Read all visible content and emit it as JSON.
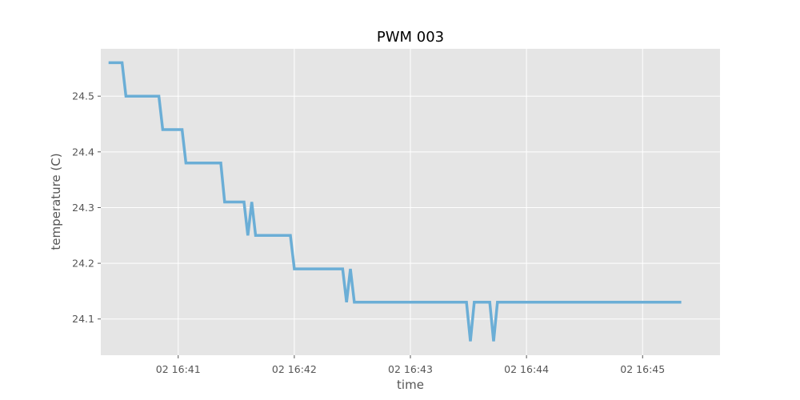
{
  "chart_data": {
    "type": "line",
    "title": "PWM 003",
    "xlabel": "time",
    "ylabel": "temperature (C)",
    "x_tick_labels": [
      "02 16:41",
      "02 16:42",
      "02 16:43",
      "02 16:44",
      "02 16:45"
    ],
    "y_tick_labels": [
      "24.1",
      "24.2",
      "24.3",
      "24.4",
      "24.5"
    ],
    "y_ticks": [
      24.1,
      24.2,
      24.3,
      24.4,
      24.5
    ],
    "xlim": [
      "16:40:20",
      "16:45:40"
    ],
    "ylim": [
      24.035,
      24.585
    ],
    "grid": true,
    "colors": {
      "line": "#6baed6",
      "plot_background": "#e5e5e5",
      "grid": "#ffffff"
    },
    "series": [
      {
        "x": [
          "16:40:24",
          "16:40:31",
          "16:40:33",
          "16:40:50",
          "16:40:52",
          "16:41:02",
          "16:41:04",
          "16:41:22",
          "16:41:24",
          "16:41:34",
          "16:41:36",
          "16:41:38",
          "16:41:40",
          "16:41:58",
          "16:42:00",
          "16:42:25",
          "16:42:27",
          "16:42:29",
          "16:42:31",
          "16:43:29",
          "16:43:31",
          "16:43:33",
          "16:43:41",
          "16:43:43",
          "16:43:45",
          "16:45:20"
        ],
        "y": [
          24.56,
          24.56,
          24.5,
          24.5,
          24.44,
          24.44,
          24.38,
          24.38,
          24.31,
          24.31,
          24.25,
          24.31,
          24.25,
          24.25,
          24.19,
          24.19,
          24.13,
          24.19,
          24.13,
          24.13,
          24.06,
          24.13,
          24.13,
          24.06,
          24.13,
          24.13
        ]
      }
    ]
  }
}
